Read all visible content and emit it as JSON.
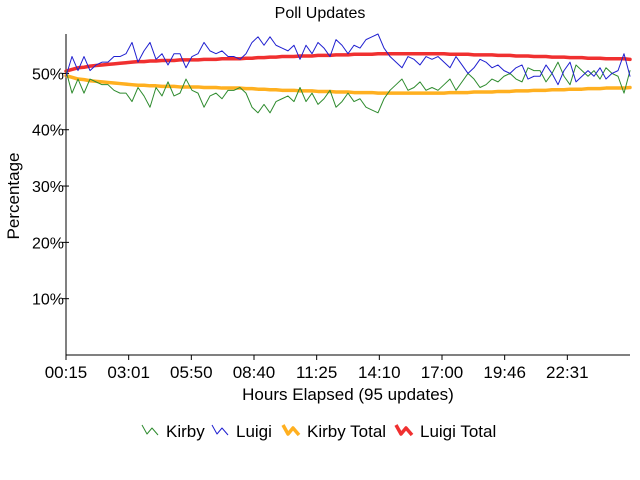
{
  "chart_data": {
    "type": "line",
    "title": "Poll Updates",
    "xlabel": "Hours Elapsed (95 updates)",
    "ylabel": "Percentage",
    "x_tick_labels": [
      "00:15",
      "03:01",
      "05:50",
      "08:40",
      "11:25",
      "14:10",
      "17:00",
      "19:46",
      "22:31"
    ],
    "y_ticks": [
      10,
      20,
      30,
      40,
      50
    ],
    "y_tick_labels": [
      "10%",
      "20%",
      "30%",
      "40%",
      "50%"
    ],
    "ylim": [
      0,
      57
    ],
    "points_count": 95,
    "grid": false,
    "legend_position": "bottom",
    "series": [
      {
        "name": "Kirby",
        "color": "#2e8b2e",
        "values": [
          50.5,
          46.5,
          49.0,
          46.5,
          49.0,
          48.5,
          48.0,
          48.0,
          47.0,
          46.5,
          46.5,
          45.0,
          47.5,
          46.0,
          44.0,
          47.5,
          46.0,
          48.5,
          46.0,
          46.5,
          49.0,
          47.0,
          46.5,
          44.0,
          46.0,
          46.5,
          45.5,
          47.0,
          47.0,
          47.5,
          46.5,
          44.0,
          43.0,
          44.5,
          43.0,
          45.0,
          45.5,
          46.0,
          45.0,
          47.5,
          45.0,
          46.5,
          44.5,
          45.5,
          47.0,
          44.0,
          45.0,
          46.5,
          45.0,
          45.5,
          44.0,
          43.5,
          43.0,
          45.5,
          47.0,
          48.0,
          49.0,
          47.0,
          47.5,
          48.5,
          47.0,
          47.5,
          47.0,
          48.0,
          49.0,
          47.0,
          48.5,
          50.0,
          49.0,
          47.5,
          48.0,
          49.0,
          48.5,
          49.5,
          50.0,
          49.0,
          48.5,
          51.0,
          50.5,
          50.5,
          48.5,
          50.0,
          52.0,
          49.5,
          48.0,
          51.5,
          50.5,
          49.5,
          50.5,
          49.0,
          51.0,
          50.0,
          49.5,
          46.5,
          50.5
        ]
      },
      {
        "name": "Luigi",
        "color": "#2020d0",
        "values": [
          49.5,
          53.0,
          50.5,
          53.0,
          50.5,
          51.5,
          52.0,
          52.0,
          53.0,
          53.0,
          53.5,
          55.5,
          52.0,
          54.0,
          55.5,
          52.5,
          53.5,
          51.5,
          53.5,
          53.5,
          51.0,
          53.0,
          53.5,
          55.5,
          54.0,
          53.5,
          54.0,
          53.0,
          53.0,
          52.5,
          53.5,
          55.5,
          56.5,
          55.0,
          56.5,
          55.0,
          54.5,
          54.0,
          55.0,
          52.5,
          55.0,
          53.5,
          55.5,
          54.5,
          53.0,
          56.0,
          55.0,
          53.5,
          55.0,
          54.5,
          56.0,
          56.5,
          57.0,
          54.5,
          53.0,
          52.0,
          51.0,
          53.0,
          52.5,
          51.5,
          53.0,
          52.5,
          53.0,
          52.0,
          51.0,
          53.0,
          51.5,
          50.0,
          51.0,
          52.5,
          52.0,
          51.0,
          51.5,
          50.5,
          50.0,
          51.0,
          51.5,
          49.0,
          49.5,
          49.5,
          51.5,
          50.0,
          48.0,
          50.5,
          52.0,
          48.5,
          49.5,
          50.5,
          49.5,
          51.0,
          49.0,
          50.0,
          50.5,
          53.5,
          49.5
        ]
      },
      {
        "name": "Kirby Total",
        "color": "#ffb020",
        "values": [
          49.6,
          49.3,
          49.0,
          48.9,
          48.7,
          48.6,
          48.5,
          48.4,
          48.3,
          48.2,
          48.1,
          48.0,
          47.9,
          47.9,
          47.8,
          47.8,
          47.7,
          47.7,
          47.7,
          47.6,
          47.6,
          47.6,
          47.6,
          47.5,
          47.5,
          47.5,
          47.4,
          47.4,
          47.4,
          47.4,
          47.3,
          47.3,
          47.2,
          47.2,
          47.1,
          47.1,
          47.0,
          47.0,
          47.0,
          46.9,
          46.9,
          46.9,
          46.8,
          46.8,
          46.8,
          46.7,
          46.7,
          46.7,
          46.6,
          46.6,
          46.6,
          46.6,
          46.5,
          46.5,
          46.5,
          46.5,
          46.5,
          46.5,
          46.5,
          46.5,
          46.5,
          46.5,
          46.5,
          46.5,
          46.6,
          46.6,
          46.6,
          46.6,
          46.7,
          46.7,
          46.7,
          46.7,
          46.8,
          46.8,
          46.8,
          46.9,
          46.9,
          46.9,
          47.0,
          47.0,
          47.0,
          47.1,
          47.1,
          47.1,
          47.2,
          47.2,
          47.2,
          47.3,
          47.3,
          47.3,
          47.4,
          47.4,
          47.4,
          47.4,
          47.5
        ]
      },
      {
        "name": "Luigi Total",
        "color": "#f03030",
        "values": [
          50.4,
          50.7,
          51.0,
          51.1,
          51.3,
          51.4,
          51.5,
          51.6,
          51.7,
          51.8,
          51.9,
          52.0,
          52.1,
          52.1,
          52.2,
          52.2,
          52.3,
          52.3,
          52.3,
          52.4,
          52.4,
          52.4,
          52.4,
          52.5,
          52.5,
          52.5,
          52.6,
          52.6,
          52.6,
          52.6,
          52.7,
          52.7,
          52.8,
          52.8,
          52.9,
          52.9,
          53.0,
          53.0,
          53.0,
          53.1,
          53.1,
          53.1,
          53.2,
          53.2,
          53.2,
          53.3,
          53.3,
          53.3,
          53.4,
          53.4,
          53.4,
          53.4,
          53.5,
          53.5,
          53.5,
          53.5,
          53.5,
          53.5,
          53.5,
          53.5,
          53.5,
          53.5,
          53.5,
          53.5,
          53.4,
          53.4,
          53.4,
          53.4,
          53.3,
          53.3,
          53.3,
          53.3,
          53.2,
          53.2,
          53.2,
          53.1,
          53.1,
          53.1,
          53.0,
          53.0,
          53.0,
          52.9,
          52.9,
          52.9,
          52.8,
          52.8,
          52.8,
          52.7,
          52.7,
          52.7,
          52.6,
          52.6,
          52.6,
          52.6,
          52.5
        ]
      }
    ]
  }
}
